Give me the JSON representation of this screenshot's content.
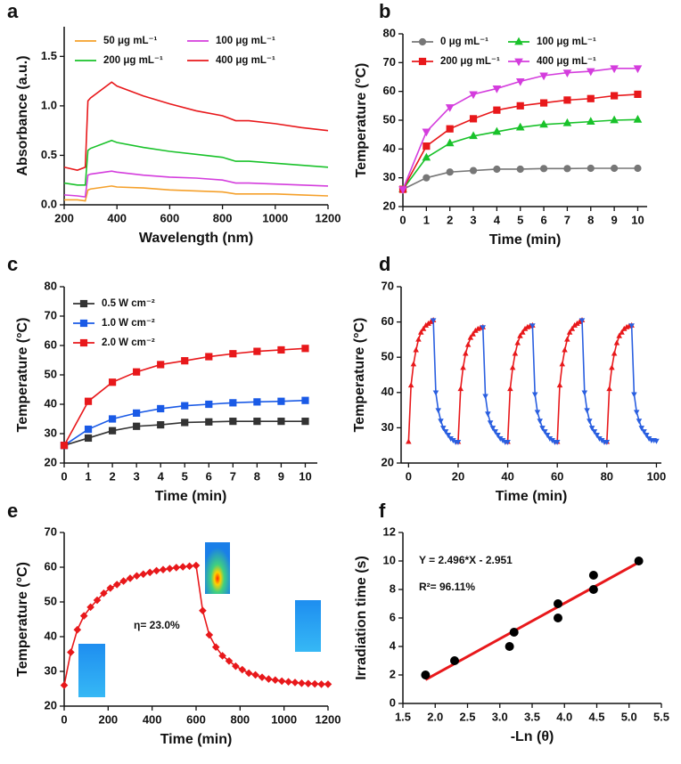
{
  "chart_data": [
    {
      "type": "line",
      "panel": "a",
      "xlabel": "Wavelength (nm)",
      "ylabel": "Absorbance (a.u.)",
      "xlim": [
        200,
        1200
      ],
      "xticks": [
        200,
        400,
        600,
        800,
        1000,
        1200
      ],
      "ylim": [
        0,
        1.8
      ],
      "yticks": [
        {
          "value": 0,
          "label": "0.0"
        },
        0.5,
        {
          "value": 1,
          "label": "1.0"
        },
        1.5
      ],
      "x": [
        200,
        250,
        280,
        290,
        300,
        380,
        400,
        500,
        600,
        700,
        800,
        850,
        900,
        1000,
        1100,
        1200
      ],
      "series": [
        {
          "name": "50 μg mL⁻¹",
          "color": "#f5a02a",
          "marker": "none",
          "values": [
            0.05,
            0.05,
            0.04,
            0.15,
            0.16,
            0.19,
            0.18,
            0.17,
            0.15,
            0.14,
            0.13,
            0.11,
            0.11,
            0.11,
            0.1,
            0.09
          ]
        },
        {
          "name": "100 μg mL⁻¹",
          "color": "#d43ddd",
          "marker": "none",
          "values": [
            0.1,
            0.09,
            0.08,
            0.3,
            0.31,
            0.34,
            0.33,
            0.3,
            0.28,
            0.27,
            0.25,
            0.22,
            0.22,
            0.21,
            0.2,
            0.19
          ]
        },
        {
          "name": "200 μg mL⁻¹",
          "color": "#19c22a",
          "marker": "none",
          "values": [
            0.22,
            0.2,
            0.2,
            0.55,
            0.57,
            0.65,
            0.63,
            0.58,
            0.54,
            0.51,
            0.48,
            0.44,
            0.44,
            0.42,
            0.4,
            0.38
          ]
        },
        {
          "name": "400 μg mL⁻¹",
          "color": "#e8181b",
          "marker": "none",
          "values": [
            0.38,
            0.35,
            0.38,
            1.05,
            1.08,
            1.24,
            1.2,
            1.1,
            1.02,
            0.95,
            0.9,
            0.85,
            0.85,
            0.82,
            0.78,
            0.75
          ]
        }
      ]
    },
    {
      "type": "line",
      "panel": "b",
      "xlabel": "Time (min)",
      "ylabel": "Temperature (°C)",
      "xlim": [
        0,
        10.4
      ],
      "xticks": [
        0,
        1,
        2,
        3,
        4,
        5,
        6,
        7,
        8,
        9,
        10
      ],
      "ylim": [
        20,
        80
      ],
      "yticks": [
        20,
        30,
        40,
        50,
        60,
        70,
        80
      ],
      "x": [
        0,
        1,
        2,
        3,
        4,
        5,
        6,
        7,
        8,
        9,
        10
      ],
      "series": [
        {
          "name": "0 μg mL⁻¹",
          "color": "#777777",
          "marker": "circle",
          "values": [
            26,
            30,
            32,
            32.5,
            33,
            33,
            33.2,
            33.2,
            33.3,
            33.3,
            33.3
          ]
        },
        {
          "name": "100 μg mL⁻¹",
          "color": "#19c22a",
          "marker": "triangle",
          "values": [
            26,
            37,
            42,
            44.5,
            46,
            47.5,
            48.5,
            49,
            49.5,
            50,
            50.2
          ]
        },
        {
          "name": "200 μg mL⁻¹",
          "color": "#e8181b",
          "marker": "square",
          "values": [
            26,
            41,
            47,
            50.5,
            53.5,
            55,
            56,
            57,
            57.5,
            58.5,
            59
          ]
        },
        {
          "name": "400 μg mL⁻¹",
          "color": "#d43ddd",
          "marker": "triangle-down",
          "values": [
            26,
            46,
            54.5,
            59,
            61,
            63.5,
            65.5,
            66.5,
            67,
            68,
            68
          ]
        }
      ]
    },
    {
      "type": "line",
      "panel": "c",
      "xlabel": "Time (min)",
      "ylabel": "Temperature (°C)",
      "xlim": [
        0,
        10.5
      ],
      "xticks": [
        0,
        1,
        2,
        3,
        4,
        5,
        6,
        7,
        8,
        9,
        10
      ],
      "ylim": [
        20,
        80
      ],
      "yticks": [
        20,
        30,
        40,
        50,
        60,
        70,
        80
      ],
      "x": [
        0,
        1,
        2,
        3,
        4,
        5,
        6,
        7,
        8,
        9,
        10
      ],
      "series": [
        {
          "name": "0.5 W cm⁻²",
          "color": "#333333",
          "marker": "square",
          "values": [
            26,
            28.5,
            31,
            32.5,
            33,
            33.8,
            34,
            34.2,
            34.2,
            34.2,
            34.2
          ]
        },
        {
          "name": "1.0 W cm⁻²",
          "color": "#1a5ae6",
          "marker": "square",
          "values": [
            26,
            31.5,
            35,
            37,
            38.5,
            39.5,
            40,
            40.5,
            40.8,
            41,
            41.3
          ]
        },
        {
          "name": "2.0 W cm⁻²",
          "color": "#e8181b",
          "marker": "square",
          "values": [
            26,
            41,
            47.5,
            51,
            53.5,
            54.8,
            56.2,
            57.2,
            58,
            58.5,
            59
          ]
        }
      ]
    },
    {
      "type": "line",
      "panel": "d",
      "xlabel": "Time (min)",
      "ylabel": "Temperature (°C)",
      "xlim": [
        -3,
        102
      ],
      "xticks": [
        0,
        20,
        40,
        60,
        80,
        100
      ],
      "ylim": [
        20,
        70
      ],
      "yticks": [
        20,
        30,
        40,
        50,
        60,
        70
      ],
      "x": [
        0,
        1,
        2,
        3,
        4,
        5,
        6,
        7,
        8,
        9,
        10,
        11,
        12,
        13,
        14,
        15,
        16,
        17,
        18,
        19,
        20,
        21,
        22,
        23,
        24,
        25,
        26,
        27,
        28,
        29,
        30,
        31,
        32,
        33,
        34,
        35,
        36,
        37,
        38,
        39,
        40,
        41,
        42,
        43,
        44,
        45,
        46,
        47,
        48,
        49,
        50,
        51,
        52,
        53,
        54,
        55,
        56,
        57,
        58,
        59,
        60,
        61,
        62,
        63,
        64,
        65,
        66,
        67,
        68,
        69,
        70,
        71,
        72,
        73,
        74,
        75,
        76,
        77,
        78,
        79,
        80,
        81,
        82,
        83,
        84,
        85,
        86,
        87,
        88,
        89,
        90,
        91,
        92,
        93,
        94,
        95,
        96,
        97,
        98,
        99,
        100
      ],
      "series": [
        {
          "color": "#e8181b",
          "marker": "triangle",
          "values": [
            26,
            42,
            48,
            52,
            55,
            57,
            58,
            59,
            59.5,
            60,
            60.5,
            null,
            null,
            null,
            null,
            null,
            null,
            null,
            null,
            null,
            26,
            41,
            47,
            51,
            53.5,
            55.5,
            56.5,
            57.5,
            58,
            58.3,
            58.5,
            null,
            null,
            null,
            null,
            null,
            null,
            null,
            null,
            null,
            26,
            41,
            47,
            51,
            54,
            56,
            57,
            58,
            58.5,
            58.8,
            59,
            null,
            null,
            null,
            null,
            null,
            null,
            null,
            null,
            null,
            26,
            42,
            48,
            52,
            55,
            57,
            58,
            59,
            59.5,
            60,
            60.5,
            null,
            null,
            null,
            null,
            null,
            null,
            null,
            null,
            null,
            26,
            41,
            47,
            51,
            54,
            56,
            57,
            58,
            58.5,
            58.8,
            59,
            null,
            null,
            null,
            null,
            null,
            null,
            null,
            null,
            null,
            null
          ]
        },
        {
          "color": "#2a5fe0",
          "marker": "triangle-down",
          "values": [
            null,
            null,
            null,
            null,
            null,
            null,
            null,
            null,
            null,
            null,
            60.5,
            40,
            35,
            32,
            30,
            29,
            28,
            27,
            26.5,
            26,
            26,
            null,
            null,
            null,
            null,
            null,
            null,
            null,
            null,
            null,
            58.5,
            39,
            34,
            31.5,
            30,
            29,
            28,
            27,
            26.5,
            26,
            26,
            null,
            null,
            null,
            null,
            null,
            null,
            null,
            null,
            null,
            59,
            39.5,
            34.5,
            32,
            30,
            29,
            28,
            27,
            26.5,
            26,
            26,
            null,
            null,
            null,
            null,
            null,
            null,
            null,
            null,
            null,
            60.5,
            40,
            35,
            32,
            30,
            29,
            28,
            27,
            26.5,
            26,
            26,
            null,
            null,
            null,
            null,
            null,
            null,
            null,
            null,
            null,
            59,
            39.5,
            34.5,
            32,
            30,
            29,
            28,
            27,
            26.5,
            26.5,
            26.3
          ]
        }
      ]
    },
    {
      "type": "line",
      "panel": "e",
      "xlabel": "Time (min)",
      "ylabel": "Temperature (°C)",
      "xlim": [
        0,
        1200
      ],
      "xticks": [
        0,
        200,
        400,
        600,
        800,
        1000,
        1200
      ],
      "ylim": [
        20,
        70
      ],
      "yticks": [
        20,
        30,
        40,
        50,
        60,
        70
      ],
      "annotations": [
        "η= 23.0%"
      ],
      "x": [
        0,
        30,
        60,
        90,
        120,
        150,
        180,
        210,
        240,
        270,
        300,
        330,
        360,
        390,
        420,
        450,
        480,
        510,
        540,
        570,
        600,
        630,
        660,
        690,
        720,
        750,
        780,
        810,
        840,
        870,
        900,
        930,
        960,
        990,
        1020,
        1050,
        1080,
        1110,
        1140,
        1170,
        1200
      ],
      "series": [
        {
          "color": "#e8181b",
          "marker": "diamond",
          "values": [
            26,
            35.5,
            42,
            46,
            48.5,
            50.5,
            52.5,
            54,
            55,
            56,
            56.8,
            57.5,
            58,
            58.5,
            59,
            59.3,
            59.6,
            59.9,
            60.1,
            60.3,
            60.5,
            47.5,
            40.5,
            37,
            34.5,
            33,
            31.5,
            30.5,
            29.5,
            29,
            28.3,
            27.8,
            27.5,
            27.2,
            27,
            26.8,
            26.6,
            26.5,
            26.4,
            26.3,
            26.3
          ]
        }
      ]
    },
    {
      "type": "scatter",
      "panel": "f",
      "xlabel": "-Ln (θ)",
      "ylabel": "Irradiation time (s)",
      "xlim": [
        1.5,
        5.5
      ],
      "xticks": [
        1.5,
        {
          "value": 2,
          "label": "2.0"
        },
        2.5,
        {
          "value": 3,
          "label": "3.0"
        },
        3.5,
        {
          "value": 4,
          "label": "4.0"
        },
        4.5,
        {
          "value": 5,
          "label": "5.0"
        },
        5.5
      ],
      "ylim": [
        0,
        12
      ],
      "yticks": [
        0,
        2,
        4,
        6,
        8,
        10,
        12
      ],
      "annotations": [
        "R²= 96.11%"
      ],
      "x": [
        1.85,
        2.3,
        3.15,
        3.22,
        3.9,
        3.9,
        4.45,
        4.45,
        5.15
      ],
      "values": [
        2,
        3,
        4,
        5,
        6,
        7,
        8,
        9,
        10
      ],
      "color": "#000000",
      "marker": "circle",
      "fit": {
        "label": "Y = 2.496*X - 2.951",
        "slope": 2.496,
        "intercept": -2.951,
        "color": "#e8181b"
      }
    }
  ]
}
